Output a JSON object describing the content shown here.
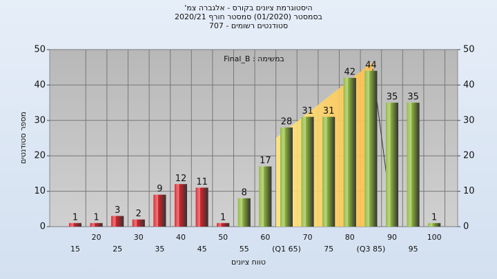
{
  "chart_data": {
    "type": "bar",
    "title": "היסטוגרמת ציונים בקורס - אלגברה צמ'",
    "subtitle": "בסמסטר (01/2020) סמסטר חורף 2020/21",
    "subtitle2": "סטודנטים רשומים - 707",
    "annotation": "במשימה : Final_B",
    "x_label": "טווח ציונים",
    "y_label": "מספר סטודנטים",
    "categories": [
      "15",
      "20",
      "25",
      "30",
      "35",
      "40",
      "45",
      "50",
      "55",
      "60",
      "(Q1 65)",
      "70",
      "75",
      "80",
      "(Q3 85)",
      "90",
      "95",
      "100"
    ],
    "values": [
      1,
      1,
      3,
      2,
      9,
      12,
      11,
      1,
      8,
      17,
      28,
      31,
      31,
      42,
      44,
      35,
      35,
      1
    ],
    "colors": [
      "#d9232b",
      "#d9232b",
      "#d9232b",
      "#d9232b",
      "#d9232b",
      "#d9232b",
      "#d9232b",
      "#d9232b",
      "#8fb83a",
      "#8fb83a",
      "#8fb83a",
      "#8fb83a",
      "#8fb83a",
      "#8fb83a",
      "#8fb83a",
      "#8fb83a",
      "#8fb83a",
      "#8fb83a"
    ],
    "ylim": [
      0,
      50
    ],
    "yticks": [
      0,
      10,
      20,
      30,
      40,
      50
    ],
    "grid": true
  }
}
